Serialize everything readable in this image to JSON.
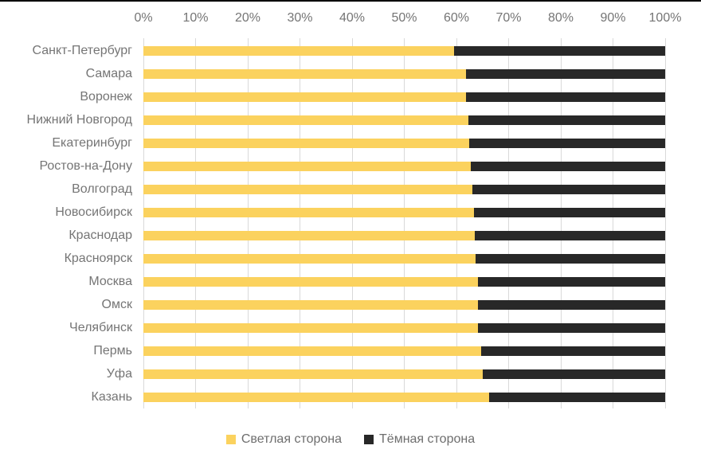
{
  "page": {
    "background": "#FFFFFF",
    "top_border_color": "#000000"
  },
  "chart_data": {
    "type": "bar",
    "orientation": "horizontal",
    "stacked": true,
    "title": "",
    "xlabel": "",
    "ylabel": "",
    "categories": [
      "Санкт-Петербург",
      "Самара",
      "Воронеж",
      "Нижний Новгород",
      "Екатеринбург",
      "Ростов-на-Дону",
      "Волгоград",
      "Новосибирск",
      "Краснодар",
      "Красноярск",
      "Москва",
      "Омск",
      "Челябинск",
      "Пермь",
      "Уфа",
      "Казань"
    ],
    "series": [
      {
        "name": "Светлая сторона",
        "color": "#FBD25E",
        "values": [
          59.5,
          61.8,
          61.8,
          62.3,
          62.5,
          62.7,
          63.1,
          63.4,
          63.5,
          63.6,
          64.1,
          64.1,
          64.1,
          64.8,
          65.0,
          66.2
        ]
      },
      {
        "name": "Тёмная сторона",
        "color": "#282828",
        "values": [
          40.5,
          38.2,
          38.2,
          37.7,
          37.5,
          37.3,
          36.9,
          36.6,
          36.5,
          36.4,
          35.9,
          35.9,
          35.9,
          35.2,
          35.0,
          33.8
        ]
      }
    ],
    "x_axis": {
      "position": "top",
      "range": [
        0,
        100
      ],
      "ticks": [
        {
          "label": "0%",
          "value": 0
        },
        {
          "label": "10%",
          "value": 10
        },
        {
          "label": "20%",
          "value": 20
        },
        {
          "label": "30%",
          "value": 30
        },
        {
          "label": "40%",
          "value": 40
        },
        {
          "label": "50%",
          "value": 50
        },
        {
          "label": "60%",
          "value": 60
        },
        {
          "label": "70%",
          "value": 70
        },
        {
          "label": "80%",
          "value": 80
        },
        {
          "label": "90%",
          "value": 90
        },
        {
          "label": "100%",
          "value": 100
        }
      ]
    },
    "grid": {
      "vertical": true,
      "horizontal": false,
      "color": "#D9D9D9"
    },
    "label_color": "#757575",
    "legend": {
      "position": "bottom",
      "entries": [
        "Светлая сторона",
        "Тёмная сторона"
      ]
    }
  }
}
